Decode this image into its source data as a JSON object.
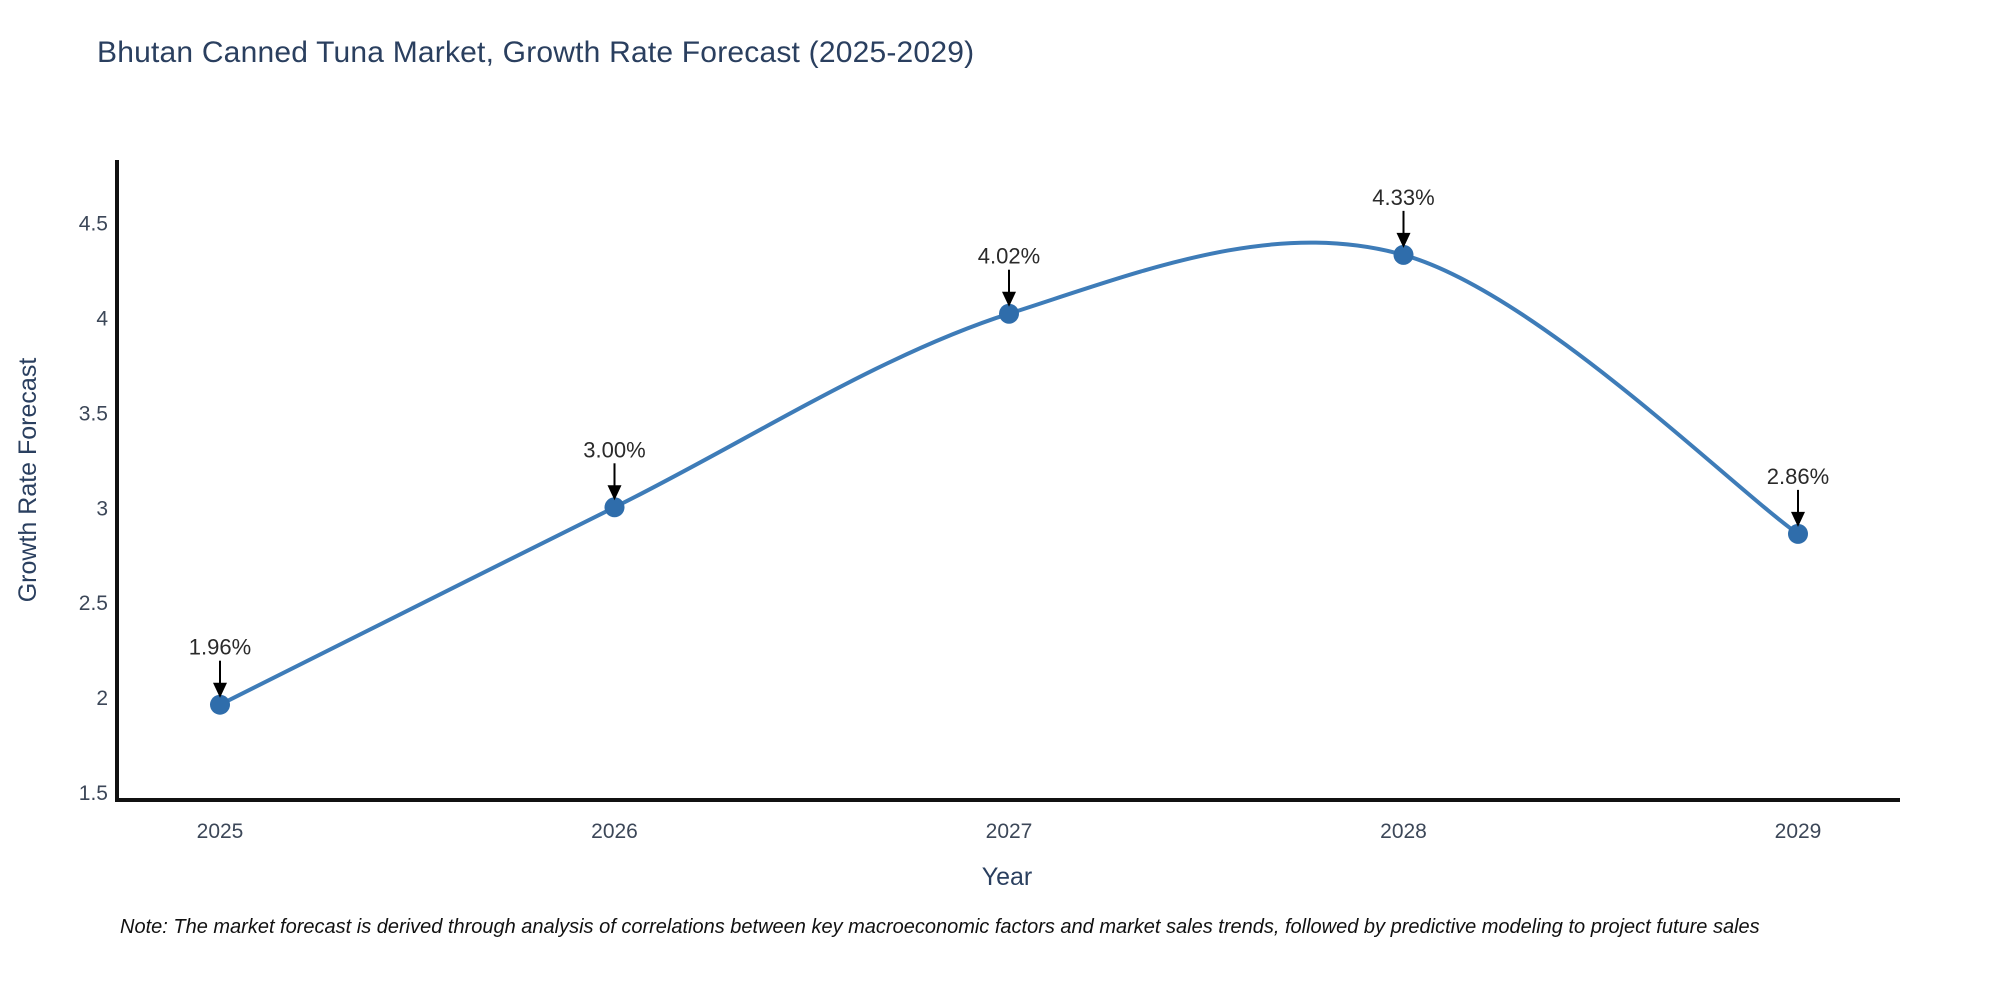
{
  "title": "Bhutan Canned Tuna Market, Growth Rate Forecast (2025-2029)",
  "note": "Note: The market forecast is derived through analysis of correlations between key macroeconomic factors and market sales trends, followed by predictive modeling to project future sales",
  "chart_data": {
    "type": "line",
    "title": "Bhutan Canned Tuna Market, Growth Rate Forecast (2025-2029)",
    "xlabel": "Year",
    "ylabel": "Growth Rate Forecast",
    "categories": [
      "2025",
      "2026",
      "2027",
      "2028",
      "2029"
    ],
    "values": [
      1.96,
      3.0,
      4.02,
      4.33,
      2.86
    ],
    "point_labels": [
      "1.96%",
      "3.00%",
      "4.02%",
      "4.33%",
      "2.86%"
    ],
    "yticks": [
      1.5,
      2,
      2.5,
      3,
      3.5,
      4,
      4.5
    ],
    "ylim": [
      1.45,
      4.87
    ],
    "grid": false,
    "legend": "none",
    "line_shape": "spline",
    "annotation_style": "value-with-down-arrow",
    "colors": {
      "line": "#3e7cb8",
      "marker": "#2f6dab",
      "axis": "#111111",
      "title_text": "#2a3f5f",
      "axis_title_text": "#2a3f5f",
      "tick_text": "#3c4758",
      "annotation_text": "#2a2a2a",
      "arrow": "#000000",
      "background": "#ffffff"
    }
  }
}
